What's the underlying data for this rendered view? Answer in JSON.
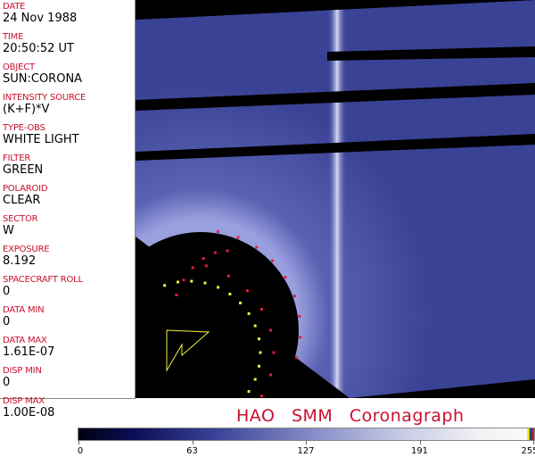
{
  "header_fields": [
    {
      "label": "DATE",
      "value": "24 Nov 1988"
    },
    {
      "label": "TIME",
      "value": "20:50:52 UT"
    },
    {
      "label": "OBJECT",
      "value": "SUN:CORONA"
    },
    {
      "label": "INTENSITY SOURCE",
      "value": "(K+F)*V"
    },
    {
      "label": "TYPE-OBS",
      "value": "WHITE LIGHT"
    },
    {
      "label": "FILTER",
      "value": "GREEN"
    },
    {
      "label": "POLAROID",
      "value": "CLEAR"
    },
    {
      "label": "SECTOR",
      "value": "W"
    },
    {
      "label": "EXPOSURE",
      "value": "8.192"
    },
    {
      "label": "SPACECRAFT ROLL",
      "value": "0"
    },
    {
      "label": "DATA MIN",
      "value": "0"
    },
    {
      "label": "DATA MAX",
      "value": "1.61E-07"
    },
    {
      "label": "DISP MIN",
      "value": "0"
    },
    {
      "label": "DISP MAX",
      "value": "1.00E-08"
    }
  ],
  "title": "HAO SMM Coronagraph",
  "colorbar": {
    "ticks": [
      "0",
      "63",
      "127",
      "191",
      "255"
    ],
    "colors": {
      "low": "#000010",
      "mid": "#3b4297",
      "high": "#fafafa"
    }
  },
  "colors": {
    "label": "#c8102e",
    "corona": "#3b4297",
    "marker_red": "#e0203a",
    "marker_yellow": "#f0f040"
  }
}
